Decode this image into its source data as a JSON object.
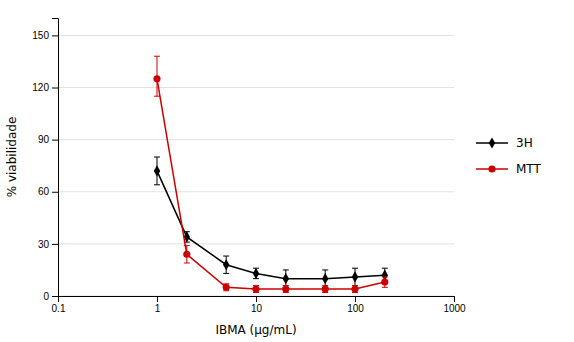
{
  "chart_data": {
    "type": "line",
    "log": "x",
    "xlabel": "IBMA (μg/mL)",
    "ylabel": "% viabilidade",
    "xlim": [
      0.1,
      1000
    ],
    "ylim": [
      0,
      160
    ],
    "xticks": [
      0.1,
      1,
      10,
      100,
      1000
    ],
    "yticks": [
      0,
      30,
      60,
      90,
      120,
      150
    ],
    "grid": true,
    "legend": "right",
    "x": [
      1.0,
      2.0,
      5.0,
      10.0,
      20.0,
      50.0,
      100.0,
      200.0
    ],
    "series": [
      {
        "name": "3H",
        "color": "#000000",
        "marker": "diamond",
        "values": [
          72,
          34,
          18,
          13,
          10,
          10,
          11,
          12
        ],
        "error_low": [
          8,
          3,
          5,
          3,
          5,
          5,
          5,
          4
        ],
        "error_high": [
          8,
          3,
          5,
          3,
          5,
          5,
          5,
          4
        ]
      },
      {
        "name": "MTT",
        "color": "#cc0000",
        "marker": "circle",
        "values": [
          125,
          24,
          5,
          4,
          4,
          4,
          4,
          8
        ],
        "error_low": [
          10,
          5,
          2,
          2,
          2,
          2,
          2,
          3
        ],
        "error_high": [
          13,
          5,
          2,
          2,
          2,
          2,
          2,
          3
        ]
      }
    ]
  }
}
